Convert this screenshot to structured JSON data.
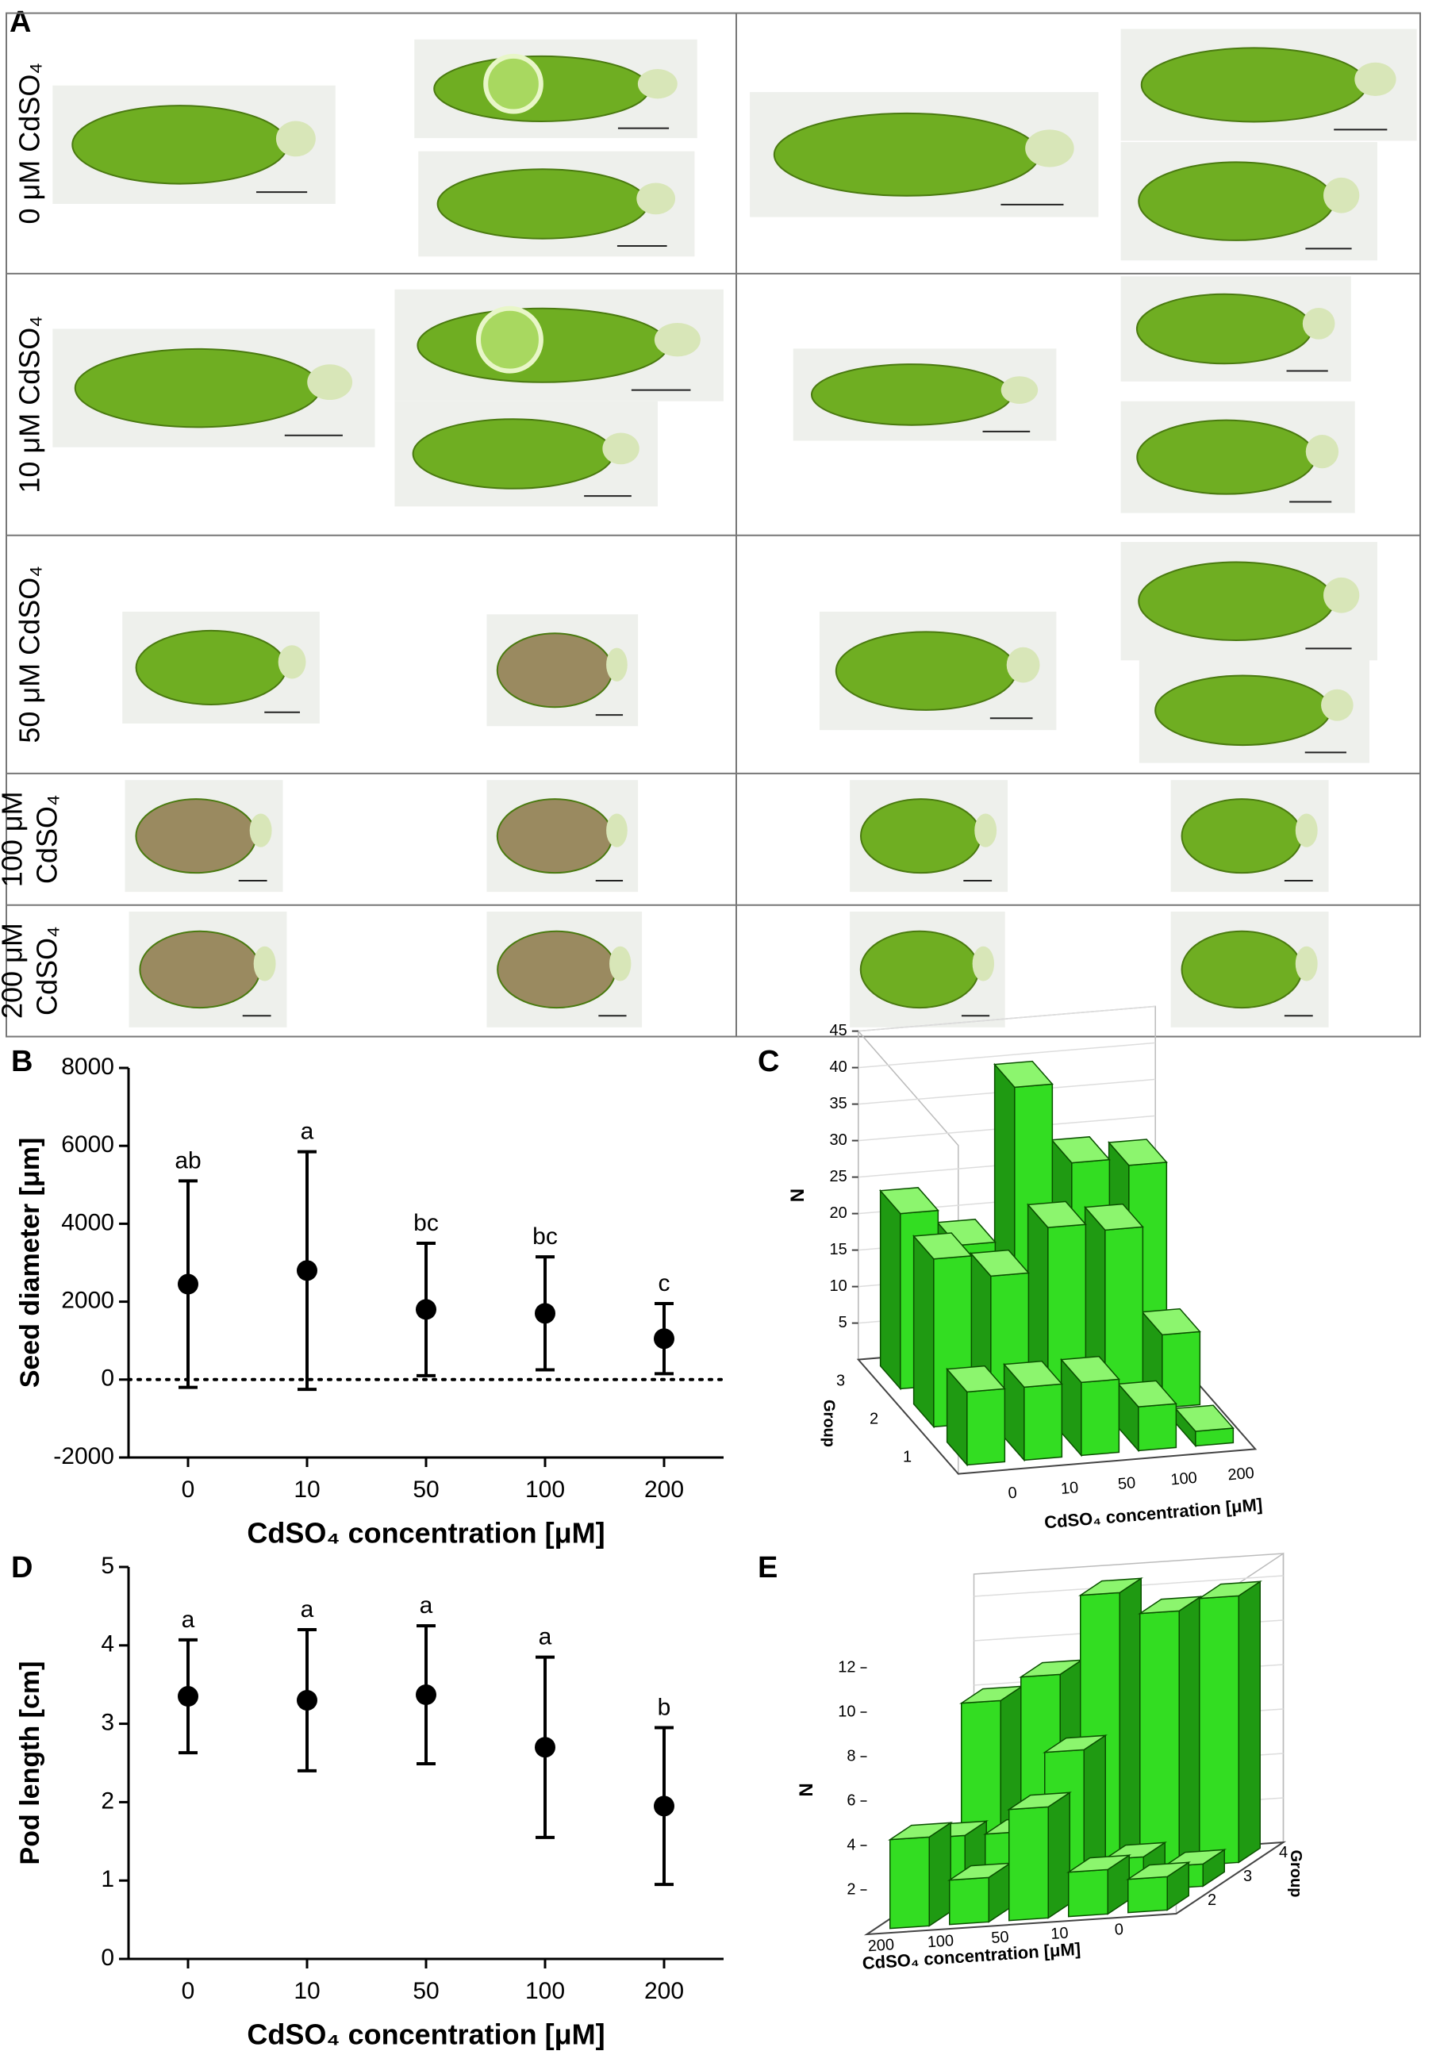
{
  "panel_labels": [
    "A",
    "B",
    "C",
    "D",
    "E"
  ],
  "panel_a": {
    "rows": [
      [
        "0 μM CdSO₄"
      ],
      [
        "10 μM CdSO₄"
      ],
      [
        "50 μM CdSO₄"
      ],
      [
        "100 μM",
        "CdSO₄"
      ],
      [
        "200 μM",
        "CdSO₄"
      ]
    ]
  },
  "chart_data": [
    {
      "type": "errorbar",
      "ylabel": "Seed diameter [μm]",
      "xlabel": "CdSO₄ concentration [μM]",
      "categories": [
        "0",
        "10",
        "50",
        "100",
        "200"
      ],
      "values": [
        2450,
        2800,
        1800,
        1700,
        1050
      ],
      "errors": [
        2650,
        3050,
        1700,
        1450,
        900
      ],
      "letters": [
        "ab",
        "a",
        "bc",
        "bc",
        "c"
      ],
      "ylim": [
        -2000,
        8000
      ],
      "yticks": [
        -2000,
        0,
        2000,
        4000,
        6000,
        8000
      ],
      "reference_line": 0,
      "color": "#000000"
    },
    {
      "type": "bar3d",
      "ylabel": "N",
      "xlabel": "CdSO₄ concentration [μM]",
      "zlabel": "Group",
      "categories": [
        "0",
        "10",
        "50",
        "100",
        "200"
      ],
      "series": [
        {
          "name": "1",
          "values": [
            10,
            10,
            10,
            6,
            2
          ]
        },
        {
          "name": "2",
          "values": [
            23,
            20,
            26,
            25,
            10
          ]
        },
        {
          "name": "3",
          "values": [
            24,
            19,
            40,
            29,
            28
          ]
        }
      ],
      "ylim": [
        0,
        45
      ],
      "yticks": [
        5,
        10,
        15,
        20,
        25,
        30,
        35,
        40,
        45
      ],
      "color": "#33dd22"
    },
    {
      "type": "errorbar",
      "ylabel": "Pod length [cm]",
      "xlabel": "CdSO₄ concentration [μM]",
      "categories": [
        "0",
        "10",
        "50",
        "100",
        "200"
      ],
      "values": [
        3.35,
        3.3,
        3.37,
        2.7,
        1.95
      ],
      "errors": [
        0.72,
        0.9,
        0.88,
        1.15,
        1.0
      ],
      "letters": [
        "a",
        "a",
        "a",
        "a",
        "b"
      ],
      "ylim": [
        0,
        5
      ],
      "yticks": [
        0,
        1,
        2,
        3,
        4,
        5
      ],
      "color": "#000000"
    },
    {
      "type": "bar3d",
      "ylabel": "N",
      "xlabel": "CdSO₄ concentration [μM]",
      "zlabel": "Group",
      "categories": [
        "200",
        "100",
        "50",
        "10",
        "0"
      ],
      "series": [
        {
          "name": "2",
          "values": [
            4,
            2,
            5,
            2,
            1.5
          ]
        },
        {
          "name": "3",
          "values": [
            3,
            3,
            6.5,
            1.5,
            1
          ]
        },
        {
          "name": "4",
          "values": [
            8,
            9,
            12.5,
            11.5,
            12
          ]
        }
      ],
      "ylim": [
        0,
        13
      ],
      "yticks": [
        2,
        4,
        6,
        8,
        10,
        12
      ],
      "color": "#33dd22"
    }
  ]
}
